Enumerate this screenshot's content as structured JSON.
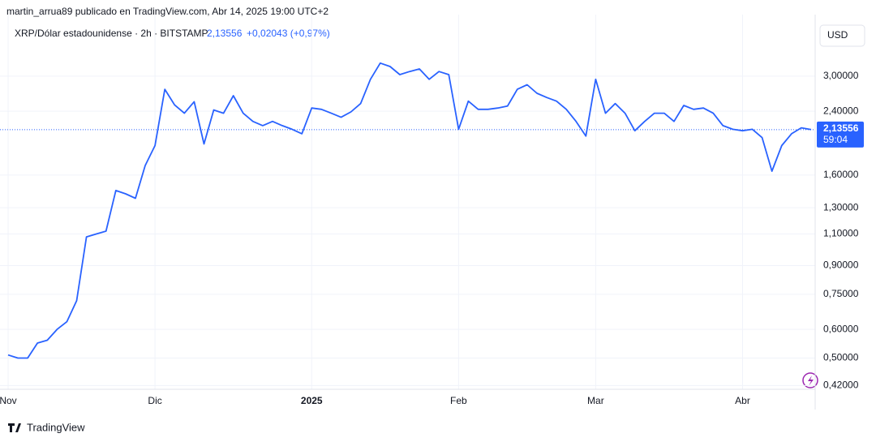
{
  "header": {
    "byline": "martin_arrua89 publicado en TradingView.com, Abr 14, 2025 19:00 UTC+2",
    "price": "2,13556",
    "change": "+0,02043 (+0,97%)",
    "currency": "USD",
    "countdown": "59:04",
    "brand": "TradingView"
  },
  "chart_data": {
    "type": "line",
    "log_scale": true,
    "grid": true,
    "categories": [
      "Nov",
      null,
      null,
      null,
      null,
      null,
      null,
      null,
      null,
      null,
      null,
      null,
      null,
      null,
      null,
      "Dic",
      null,
      null,
      null,
      null,
      null,
      null,
      null,
      null,
      null,
      null,
      null,
      null,
      null,
      null,
      null,
      "2025",
      null,
      null,
      null,
      null,
      null,
      null,
      null,
      null,
      null,
      null,
      null,
      null,
      null,
      null,
      "Feb",
      null,
      null,
      null,
      null,
      null,
      null,
      null,
      null,
      null,
      null,
      null,
      null,
      null,
      "Mar",
      null,
      null,
      null,
      null,
      null,
      null,
      null,
      null,
      null,
      null,
      null,
      null,
      null,
      null,
      "Abr",
      null,
      null,
      null,
      null,
      null,
      null,
      null
    ],
    "series": [
      {
        "name": "XRP/Dólar estadounidense · 2h · BITSTAMP",
        "color": "#2962ff",
        "values": [
          0.51,
          0.5,
          0.5,
          0.55,
          0.56,
          0.6,
          0.63,
          0.72,
          1.08,
          1.1,
          1.12,
          1.45,
          1.42,
          1.38,
          1.7,
          1.93,
          2.76,
          2.5,
          2.37,
          2.55,
          1.95,
          2.42,
          2.37,
          2.65,
          2.37,
          2.25,
          2.19,
          2.25,
          2.19,
          2.14,
          2.08,
          2.45,
          2.43,
          2.37,
          2.31,
          2.39,
          2.52,
          2.94,
          3.26,
          3.19,
          3.03,
          3.09,
          3.14,
          2.94,
          3.09,
          3.03,
          2.14,
          2.56,
          2.43,
          2.43,
          2.45,
          2.48,
          2.76,
          2.84,
          2.69,
          2.62,
          2.56,
          2.43,
          2.25,
          2.05,
          2.94,
          2.37,
          2.52,
          2.37,
          2.12,
          2.25,
          2.37,
          2.37,
          2.25,
          2.49,
          2.43,
          2.45,
          2.37,
          2.19,
          2.14,
          2.12,
          2.14,
          2.03,
          1.64,
          1.93,
          2.08,
          2.16,
          2.13556
        ]
      }
    ],
    "ylim": [
      0.41,
      4.17
    ],
    "yticks": [
      {
        "value": 3,
        "label": "3,00000"
      },
      {
        "value": 2.4,
        "label": "2,40000"
      },
      {
        "value": 1.6,
        "label": "1,60000"
      },
      {
        "value": 1.3,
        "label": "1,30000"
      },
      {
        "value": 1.1,
        "label": "1,10000"
      },
      {
        "value": 0.9,
        "label": "0,90000"
      },
      {
        "value": 0.75,
        "label": "0,75000"
      },
      {
        "value": 0.6,
        "label": "0,60000"
      },
      {
        "value": 0.5,
        "label": "0,50000"
      },
      {
        "value": 0.42,
        "label": "0,42000"
      }
    ]
  }
}
